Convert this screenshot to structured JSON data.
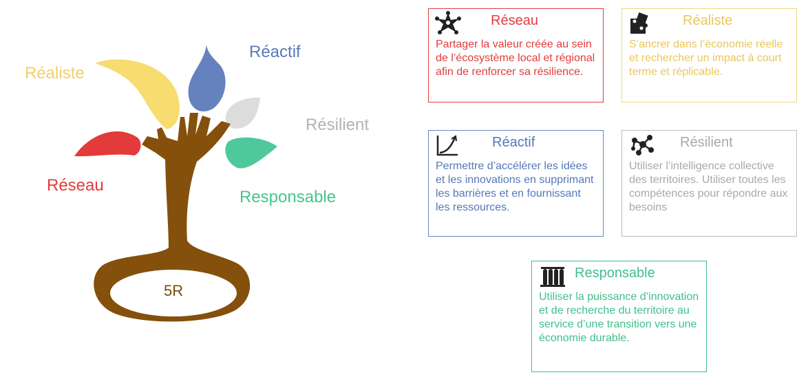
{
  "tree": {
    "center": "5R",
    "labels": {
      "realiste": "Réaliste",
      "reactif": "Réactif",
      "resilient": "Résilient",
      "reseau": "Réseau",
      "responsable": "Responsable"
    }
  },
  "cards": {
    "reseau": {
      "title": "Réseau",
      "icon": "network-star-icon",
      "color": "#e03c3c",
      "text": "Partager la valeur créée au sein de l’écosystème local et régional afin de renforcer sa résilience."
    },
    "realiste": {
      "title": "Réaliste",
      "icon": "puzzle-icon",
      "color": "#e8c34a",
      "text": "S’ancrer dans l’économie réelle et rechercher un impact à court terme et réplicable."
    },
    "reactif": {
      "title": "Réactif",
      "icon": "growth-curve-icon",
      "color": "#5577b8",
      "text": "Permettre d’accélérer les idées et les innovations en supprimant les barrières et en fournissant les ressources."
    },
    "resilient": {
      "title": "Résilient",
      "icon": "molecule-icon",
      "color": "#a8a8a8",
      "text": "Utiliser l’intelligence collective des territoires. Utiliser toutes les compétences pour répondre aux besoins"
    },
    "responsable": {
      "title": "Responsable",
      "icon": "test-tubes-icon",
      "color": "#3fbf8a",
      "text": "Utiliser la puissance d’innovation et de recherche du territoire au service d’une transition vers une économie durable."
    }
  }
}
